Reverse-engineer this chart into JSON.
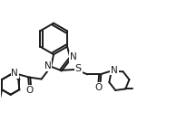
{
  "bg_color": "#ffffff",
  "line_color": "#1a1a1a",
  "lw": 1.4,
  "font_size": 7.0,
  "figsize": [
    1.95,
    1.55
  ],
  "dpi": 100,
  "xlim": [
    0,
    10
  ],
  "ylim": [
    0,
    8
  ]
}
